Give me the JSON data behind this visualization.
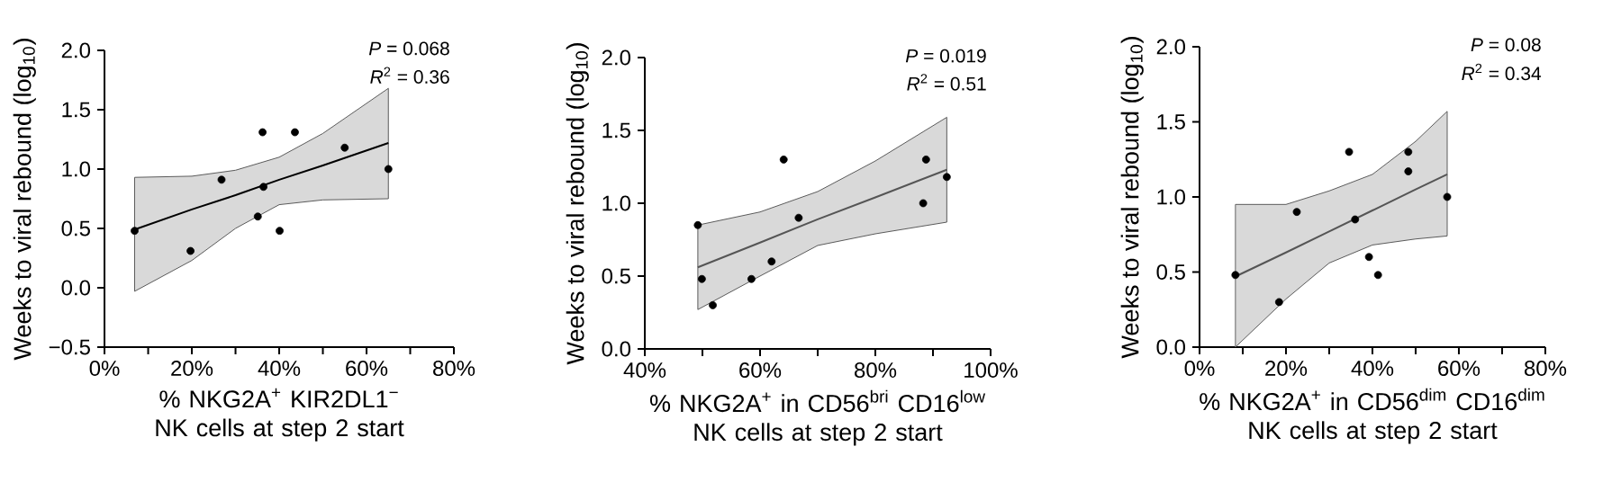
{
  "chart_data": [
    {
      "type": "scatter",
      "xlabel": "% NKG2A$^{+}$ KIR2DL1$^{−}$ NK cells at step 2 start",
      "ylabel": "Weeks to viral rebound (log$_{10}$)",
      "xlim": [
        0,
        80
      ],
      "ylim": [
        -0.5,
        2.0
      ],
      "xticks": [
        {
          "value": 0,
          "label": "0%"
        },
        {
          "value": 20,
          "label": "20%"
        },
        {
          "value": 40,
          "label": "40%"
        },
        {
          "value": 60,
          "label": "60%"
        },
        {
          "value": 80,
          "label": "80%"
        }
      ],
      "yticks": [
        {
          "value": -0.5,
          "label": "−0.5"
        },
        {
          "value": 0,
          "label": "0.0"
        },
        {
          "value": 0.5,
          "label": "0.5"
        },
        {
          "value": 1.0,
          "label": "1.0"
        },
        {
          "value": 1.5,
          "label": "1.5"
        },
        {
          "value": 2.0,
          "label": "2.0"
        }
      ],
      "annotations": [
        "*P* = 0.068",
        "*R*$^{2}$ = 0.36"
      ],
      "series": [
        {
          "marker": "circle",
          "color": "#000000",
          "x": [
            6.9,
            19.7,
            26.8,
            36.2,
            36.4,
            35.1,
            40.1,
            43.6,
            55.0,
            65.0
          ],
          "values": [
            0.48,
            0.31,
            0.91,
            1.31,
            0.85,
            0.6,
            0.48,
            1.31,
            1.18,
            1.0
          ]
        },
        {
          "type": "line",
          "marker": "none",
          "color": "#000000",
          "x": [
            6.9,
            20,
            30,
            40,
            50,
            65
          ],
          "values": [
            0.49,
            0.66,
            0.78,
            0.91,
            1.03,
            1.22
          ],
          "lower": [
            -0.03,
            0.23,
            0.5,
            0.7,
            0.74,
            0.75
          ],
          "upper": [
            0.93,
            0.94,
            0.99,
            1.1,
            1.3,
            1.68
          ]
        }
      ]
    },
    {
      "type": "scatter",
      "xlabel": "% NKG2A$^{+}$ in CD56$^{bri}$ CD16$^{low}$ NK cells at step 2 start",
      "ylabel": "Weeks to viral rebound (log$_{10}$)",
      "xlim": [
        40,
        100
      ],
      "ylim": [
        0,
        2.0
      ],
      "xticks": [
        {
          "value": 40,
          "label": "40%"
        },
        {
          "value": 60,
          "label": "60%"
        },
        {
          "value": 80,
          "label": "80%"
        },
        {
          "value": 100,
          "label": "100%"
        }
      ],
      "yticks": [
        {
          "value": 0,
          "label": "0.0"
        },
        {
          "value": 0.5,
          "label": "0.5"
        },
        {
          "value": 1.0,
          "label": "1.0"
        },
        {
          "value": 1.5,
          "label": "1.5"
        },
        {
          "value": 2.0,
          "label": "2.0"
        }
      ],
      "annotations": [
        "*P* = 0.019",
        "*R*$^{2}$ = 0.51"
      ],
      "series": [
        {
          "marker": "circle",
          "color": "#000000",
          "x": [
            49.2,
            49.9,
            51.8,
            58.5,
            62.0,
            64.1,
            66.7,
            88.3,
            88.8,
            92.4
          ],
          "values": [
            0.85,
            0.48,
            0.3,
            0.48,
            0.6,
            1.3,
            0.9,
            1.0,
            1.3,
            1.18
          ]
        },
        {
          "type": "line",
          "marker": "none",
          "color": "#555555",
          "x": [
            49.2,
            60,
            70,
            80,
            92.4
          ],
          "values": [
            0.56,
            0.73,
            0.89,
            1.04,
            1.23
          ],
          "lower": [
            0.27,
            0.5,
            0.71,
            0.79,
            0.87
          ],
          "upper": [
            0.85,
            0.94,
            1.08,
            1.29,
            1.59
          ]
        }
      ]
    },
    {
      "type": "scatter",
      "xlabel": "% NKG2A$^{+}$ in CD56$^{dim}$ CD16$^{dim}$ NK cells at step 2 start",
      "ylabel": "Weeks to viral rebound (log$_{10}$)",
      "xlim": [
        0,
        80
      ],
      "ylim": [
        0,
        2.0
      ],
      "xticks": [
        {
          "value": 0,
          "label": "0%"
        },
        {
          "value": 20,
          "label": "20%"
        },
        {
          "value": 40,
          "label": "40%"
        },
        {
          "value": 60,
          "label": "60%"
        },
        {
          "value": 80,
          "label": "80%"
        }
      ],
      "yticks": [
        {
          "value": 0,
          "label": "0.0"
        },
        {
          "value": 0.5,
          "label": "0.5"
        },
        {
          "value": 1.0,
          "label": "1.0"
        },
        {
          "value": 1.5,
          "label": "1.5"
        },
        {
          "value": 2.0,
          "label": "2.0"
        }
      ],
      "annotations": [
        "*P* = 0.08",
        "*R*$^{2}$ = 0.34"
      ],
      "series": [
        {
          "marker": "circle",
          "color": "#000000",
          "x": [
            8.3,
            18.4,
            22.5,
            34.6,
            36.0,
            39.2,
            41.3,
            48.3,
            48.3,
            57.3
          ],
          "values": [
            0.48,
            0.3,
            0.9,
            1.3,
            0.85,
            0.6,
            0.48,
            1.3,
            1.17,
            1.0
          ]
        },
        {
          "type": "line",
          "marker": "none",
          "color": "#555555",
          "x": [
            8.3,
            20,
            30,
            40,
            50,
            57.3
          ],
          "values": [
            0.47,
            0.63,
            0.77,
            0.91,
            1.05,
            1.15
          ],
          "lower": [
            0.0,
            0.32,
            0.56,
            0.68,
            0.72,
            0.74
          ],
          "upper": [
            0.95,
            0.95,
            1.04,
            1.15,
            1.37,
            1.57
          ]
        }
      ]
    }
  ]
}
